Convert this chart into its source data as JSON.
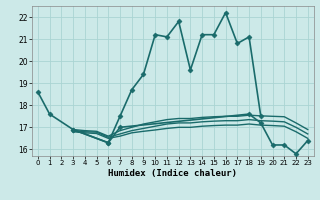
{
  "xlabel": "Humidex (Indice chaleur)",
  "background_color": "#cce9e8",
  "grid_color": "#aad4d3",
  "line_color": "#1a6b6b",
  "xlim": [
    -0.5,
    23.5
  ],
  "ylim": [
    15.7,
    22.5
  ],
  "xticks": [
    0,
    1,
    2,
    3,
    4,
    5,
    6,
    7,
    8,
    9,
    10,
    11,
    12,
    13,
    14,
    15,
    16,
    17,
    18,
    19,
    20,
    21,
    22,
    23
  ],
  "yticks": [
    16,
    17,
    18,
    19,
    20,
    21,
    22
  ],
  "series": [
    {
      "x": [
        0,
        1,
        3,
        6,
        7,
        8,
        9,
        10,
        11,
        12,
        13,
        14,
        15,
        16,
        17,
        18,
        19
      ],
      "y": [
        18.6,
        17.6,
        16.9,
        16.3,
        17.5,
        18.7,
        19.4,
        21.2,
        21.1,
        21.8,
        19.6,
        21.2,
        21.2,
        22.2,
        20.8,
        21.1,
        17.5
      ],
      "marker": "D",
      "markersize": 2.5,
      "linewidth": 1.2
    },
    {
      "x": [
        3,
        6,
        7,
        18,
        19,
        20,
        21,
        22,
        23
      ],
      "y": [
        16.9,
        16.3,
        17.0,
        17.6,
        17.2,
        16.2,
        16.2,
        15.8,
        16.4
      ],
      "marker": "D",
      "markersize": 2.5,
      "linewidth": 1.2
    },
    {
      "x": [
        3,
        4,
        5,
        6,
        7,
        8,
        9,
        10,
        11,
        12,
        13,
        14,
        15,
        16,
        17,
        18,
        19,
        20,
        21,
        22,
        23
      ],
      "y": [
        16.9,
        16.85,
        16.82,
        16.6,
        16.85,
        17.0,
        17.15,
        17.25,
        17.35,
        17.4,
        17.4,
        17.45,
        17.48,
        17.5,
        17.5,
        17.55,
        17.52,
        17.5,
        17.48,
        17.2,
        16.9
      ],
      "marker": null,
      "markersize": 0,
      "linewidth": 1.0
    },
    {
      "x": [
        3,
        4,
        5,
        6,
        7,
        8,
        9,
        10,
        11,
        12,
        13,
        14,
        15,
        16,
        17,
        18,
        19,
        20,
        21,
        22,
        23
      ],
      "y": [
        16.85,
        16.8,
        16.78,
        16.55,
        16.7,
        16.85,
        16.95,
        17.05,
        17.15,
        17.2,
        17.2,
        17.25,
        17.28,
        17.3,
        17.3,
        17.35,
        17.3,
        17.28,
        17.25,
        17.0,
        16.7
      ],
      "marker": null,
      "markersize": 0,
      "linewidth": 1.0
    },
    {
      "x": [
        3,
        4,
        5,
        6,
        7,
        8,
        9,
        10,
        11,
        12,
        13,
        14,
        15,
        16,
        17,
        18,
        19,
        20,
        21,
        22,
        23
      ],
      "y": [
        16.8,
        16.75,
        16.72,
        16.5,
        16.6,
        16.75,
        16.82,
        16.88,
        16.95,
        17.0,
        17.0,
        17.05,
        17.08,
        17.1,
        17.1,
        17.15,
        17.1,
        17.08,
        17.05,
        16.8,
        16.5
      ],
      "marker": null,
      "markersize": 0,
      "linewidth": 1.0
    }
  ]
}
